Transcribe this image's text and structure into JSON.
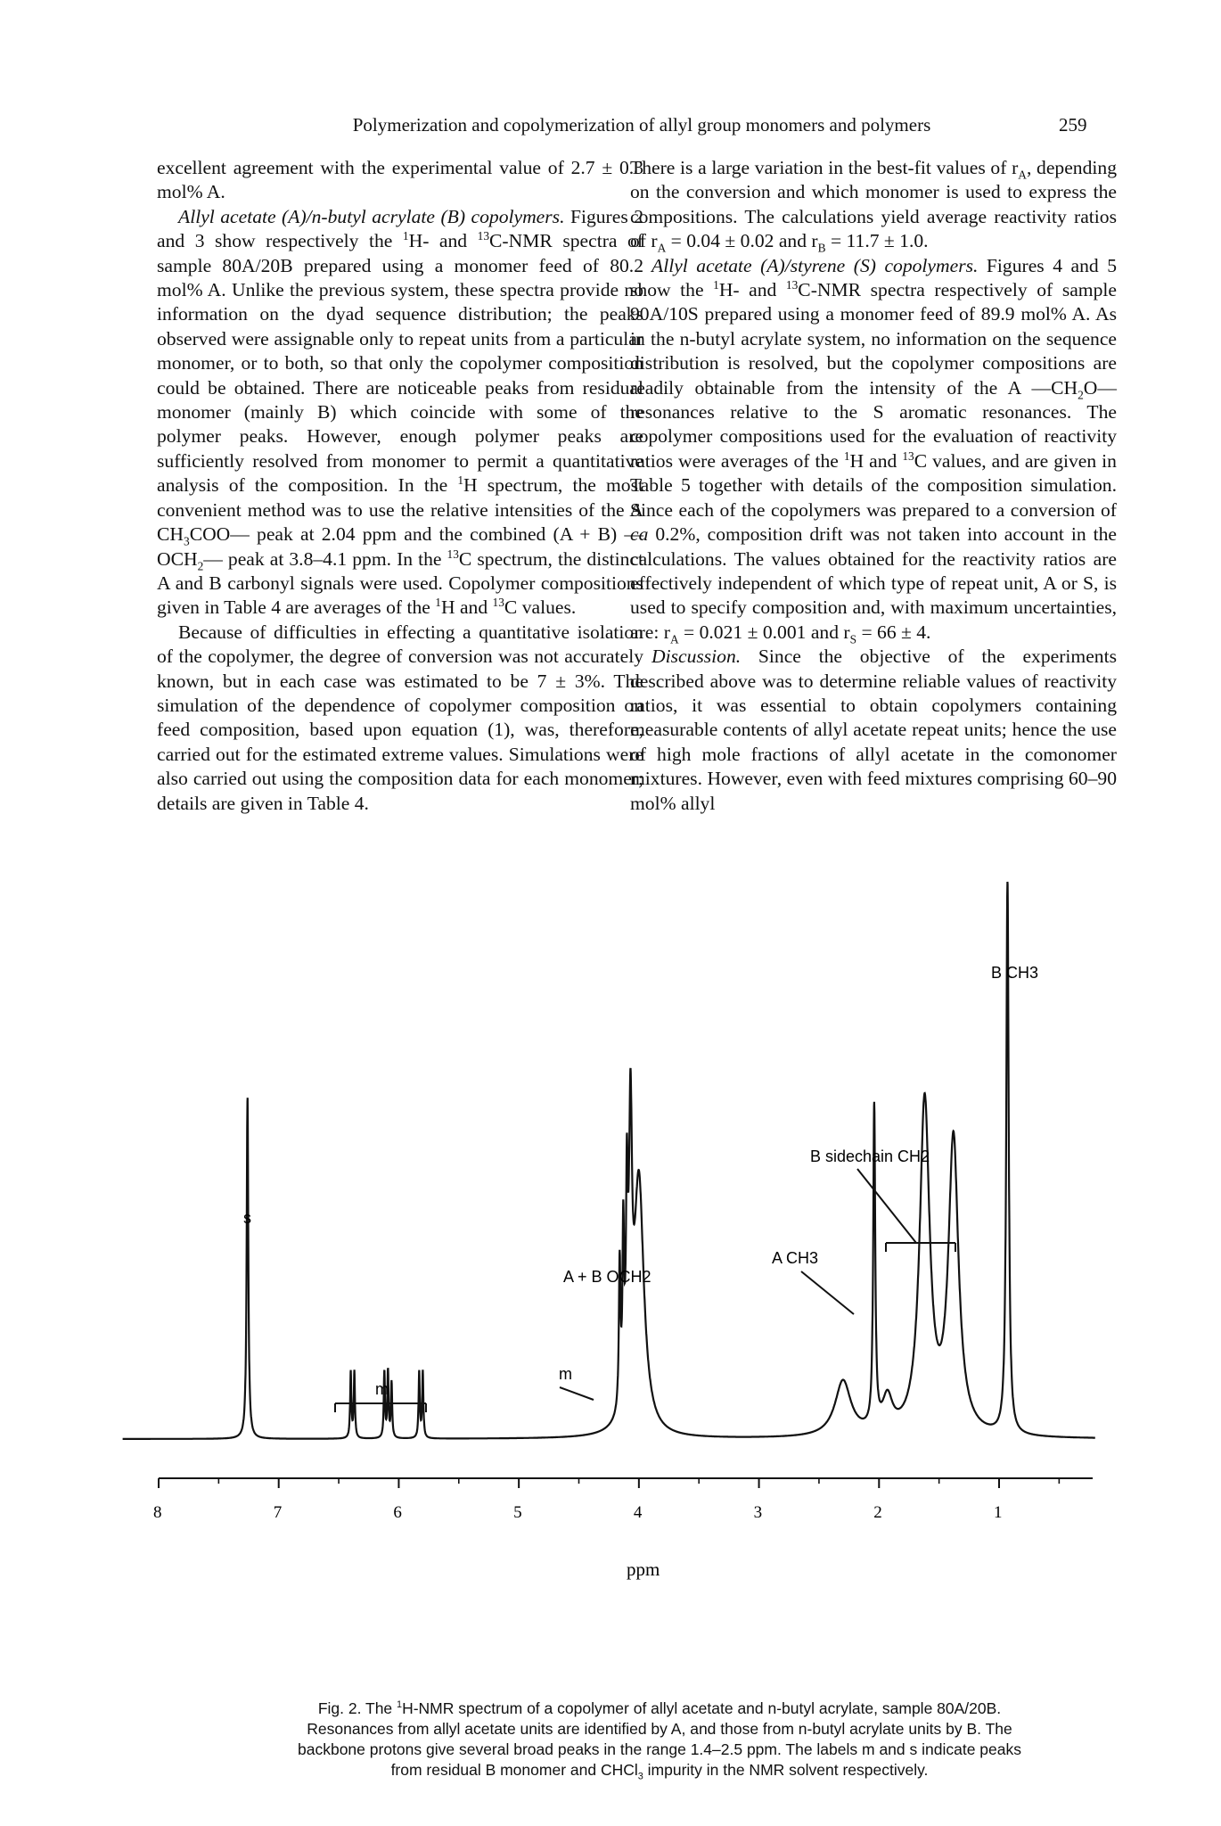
{
  "header": {
    "running_head": "Polymerization and copolymerization of allyl group monomers and polymers",
    "page_number": "259"
  },
  "left_column": {
    "p1": "excellent agreement with the experimental value of 2.7 ± 0.3 mol% A.",
    "p2_head": "Allyl acetate (A)/n-butyl acrylate (B) copolymers.",
    "p2_a": " Figures 2 and 3 show respectively the ",
    "p2_sup1": "1",
    "p2_b": "H- and ",
    "p2_sup2": "13",
    "p2_c": "C-NMR spectra of sample 80A/20B prepared using a monomer feed of 80.2 mol% A. Unlike the previous system, these spectra provide no information on the dyad sequence distribution; the peaks observed were assignable only to repeat units from a particular monomer, or to both, so that only the copolymer composition could be obtained. There are noticeable peaks from residual monomer (mainly B) which coincide with some of the polymer peaks. However, enough polymer peaks are sufficiently resolved from monomer to permit a quantitative analysis of the composition. In the ",
    "p2_sup3": "1",
    "p2_d": "H spectrum, the most convenient method was to use the relative intensities of the A CH",
    "p2_sub1": "3",
    "p2_e": "COO— peak at 2.04 ppm and the combined (A + B) —OCH",
    "p2_sub2": "2",
    "p2_f": "— peak at 3.8–4.1 ppm. In the ",
    "p2_sup4": "13",
    "p2_g": "C spectrum, the distinct A and B carbonyl signals were used. Copolymer compositions given in Table 4 are averages of the ",
    "p2_sup5": "1",
    "p2_h": "H and ",
    "p2_sup6": "13",
    "p2_i": "C values.",
    "p3": "Because of difficulties in effecting a quantitative isolation of the copolymer, the degree of conversion was not accurately known, but in each case was estimated to be 7 ± 3%. The simulation of the dependence of copolymer composition on feed composition, based upon equation (1), was, therefore, carried out for the estimated extreme values. Simulations were also carried out using the composition data for each monomer; details are given in Table 4."
  },
  "right_column": {
    "p1_a": "There is a large variation in the best-fit values of r",
    "p1_sub1": "A",
    "p1_b": ", depending on the conversion and which monomer is used to express the compositions. The calculations yield average reactivity ratios of r",
    "p1_sub2": "A",
    "p1_c": " = 0.04 ± 0.02 and r",
    "p1_sub3": "B",
    "p1_d": " = 11.7 ± 1.0.",
    "p2_head": "Allyl acetate (A)/styrene (S) copolymers.",
    "p2_a": " Figures 4 and 5 show the ",
    "p2_sup1": "1",
    "p2_b": "H- and ",
    "p2_sup2": "13",
    "p2_c": "C-NMR spectra respectively of sample 90A/10S prepared using a monomer feed of 89.9 mol% A. As in the n-butyl acrylate system, no information on the sequence distribution is resolved, but the copolymer compositions are readily obtainable from the intensity of the A —CH",
    "p2_sub1": "2",
    "p2_d": "O— resonances relative to the S aromatic resonances. The copolymer compositions used for the evaluation of reactivity ratios were averages of the ",
    "p2_sup3": "1",
    "p2_e": "H and ",
    "p2_sup4": "13",
    "p2_f": "C values, and are given in Table 5 together with details of the composition simulation. Since each of the copolymers was prepared to a conversion of ",
    "p2_ca": "ca",
    "p2_g": " 0.2%, composition drift was not taken into account in the calculations. The values obtained for the reactivity ratios are effectively independent of which type of repeat unit, A or S, is used to specify composition and, with maximum uncertainties, are: r",
    "p2_sub2": "A",
    "p2_h": " = 0.021 ± 0.001 and r",
    "p2_sub3": "S",
    "p2_i": " = 66 ± 4.",
    "p3_head": "Discussion.",
    "p3_a": " Since the objective of the experiments described above was to determine reliable values of reactivity ratios, it was essential to obtain copolymers containing measurable contents of allyl acetate repeat units; hence the use of high mole fractions of allyl acetate in the comonomer mixtures. However, even with feed mixtures comprising 60–90 mol% allyl"
  },
  "chart_data": {
    "type": "line",
    "xlabel": "ppm",
    "xlim": [
      8.3,
      0.2
    ],
    "x_reversed": true,
    "tick_labels": [
      "8",
      "7",
      "6",
      "5",
      "4",
      "3",
      "2",
      "1"
    ],
    "annotations": {
      "s": "s",
      "m1": "m",
      "m2": "m",
      "aboch2": "A + B OCH2",
      "ach3": "A CH3",
      "bside": "B sidechain CH2",
      "bch3": "B CH3"
    },
    "peaks": [
      {
        "ppm": 7.26,
        "height": 0.62,
        "width": 0.008,
        "label": "s"
      },
      {
        "ppm": 6.4,
        "height": 0.12,
        "width": 0.006
      },
      {
        "ppm": 6.37,
        "height": 0.12,
        "width": 0.006
      },
      {
        "ppm": 6.12,
        "height": 0.12,
        "width": 0.006
      },
      {
        "ppm": 6.09,
        "height": 0.12,
        "width": 0.006
      },
      {
        "ppm": 6.06,
        "height": 0.1,
        "width": 0.006
      },
      {
        "ppm": 5.83,
        "height": 0.12,
        "width": 0.006
      },
      {
        "ppm": 5.8,
        "height": 0.12,
        "width": 0.006
      },
      {
        "ppm": 4.16,
        "height": 0.26,
        "width": 0.008
      },
      {
        "ppm": 4.13,
        "height": 0.3,
        "width": 0.008
      },
      {
        "ppm": 4.1,
        "height": 0.34,
        "width": 0.009
      },
      {
        "ppm": 4.07,
        "height": 0.48,
        "width": 0.015
      },
      {
        "ppm": 4.0,
        "height": 0.46,
        "width": 0.05
      },
      {
        "ppm": 2.3,
        "height": 0.1,
        "width": 0.08
      },
      {
        "ppm": 2.04,
        "height": 0.58,
        "width": 0.01,
        "label": "A CH3"
      },
      {
        "ppm": 1.93,
        "height": 0.06,
        "width": 0.05
      },
      {
        "ppm": 1.62,
        "height": 0.6,
        "width": 0.05
      },
      {
        "ppm": 1.38,
        "height": 0.53,
        "width": 0.05
      },
      {
        "ppm": 0.93,
        "height": 1.0,
        "width": 0.012,
        "label": "B CH3"
      }
    ]
  },
  "figure": {
    "caption_line1_a": "Fig. 2. The ",
    "caption_sup": "1",
    "caption_line1_b": "H-NMR spectrum of a copolymer of allyl acetate and n-butyl acrylate, sample 80A/20B.",
    "caption_line2": "Resonances from allyl acetate units are identified by A, and those from n-butyl acrylate units by B. The",
    "caption_line3": "backbone protons give several broad peaks in the range 1.4–2.5 ppm. The labels m and s indicate peaks",
    "caption_line4_a": "from residual B monomer and CHCl",
    "caption_sub": "3",
    "caption_line4_b": " impurity in the NMR solvent respectively."
  }
}
